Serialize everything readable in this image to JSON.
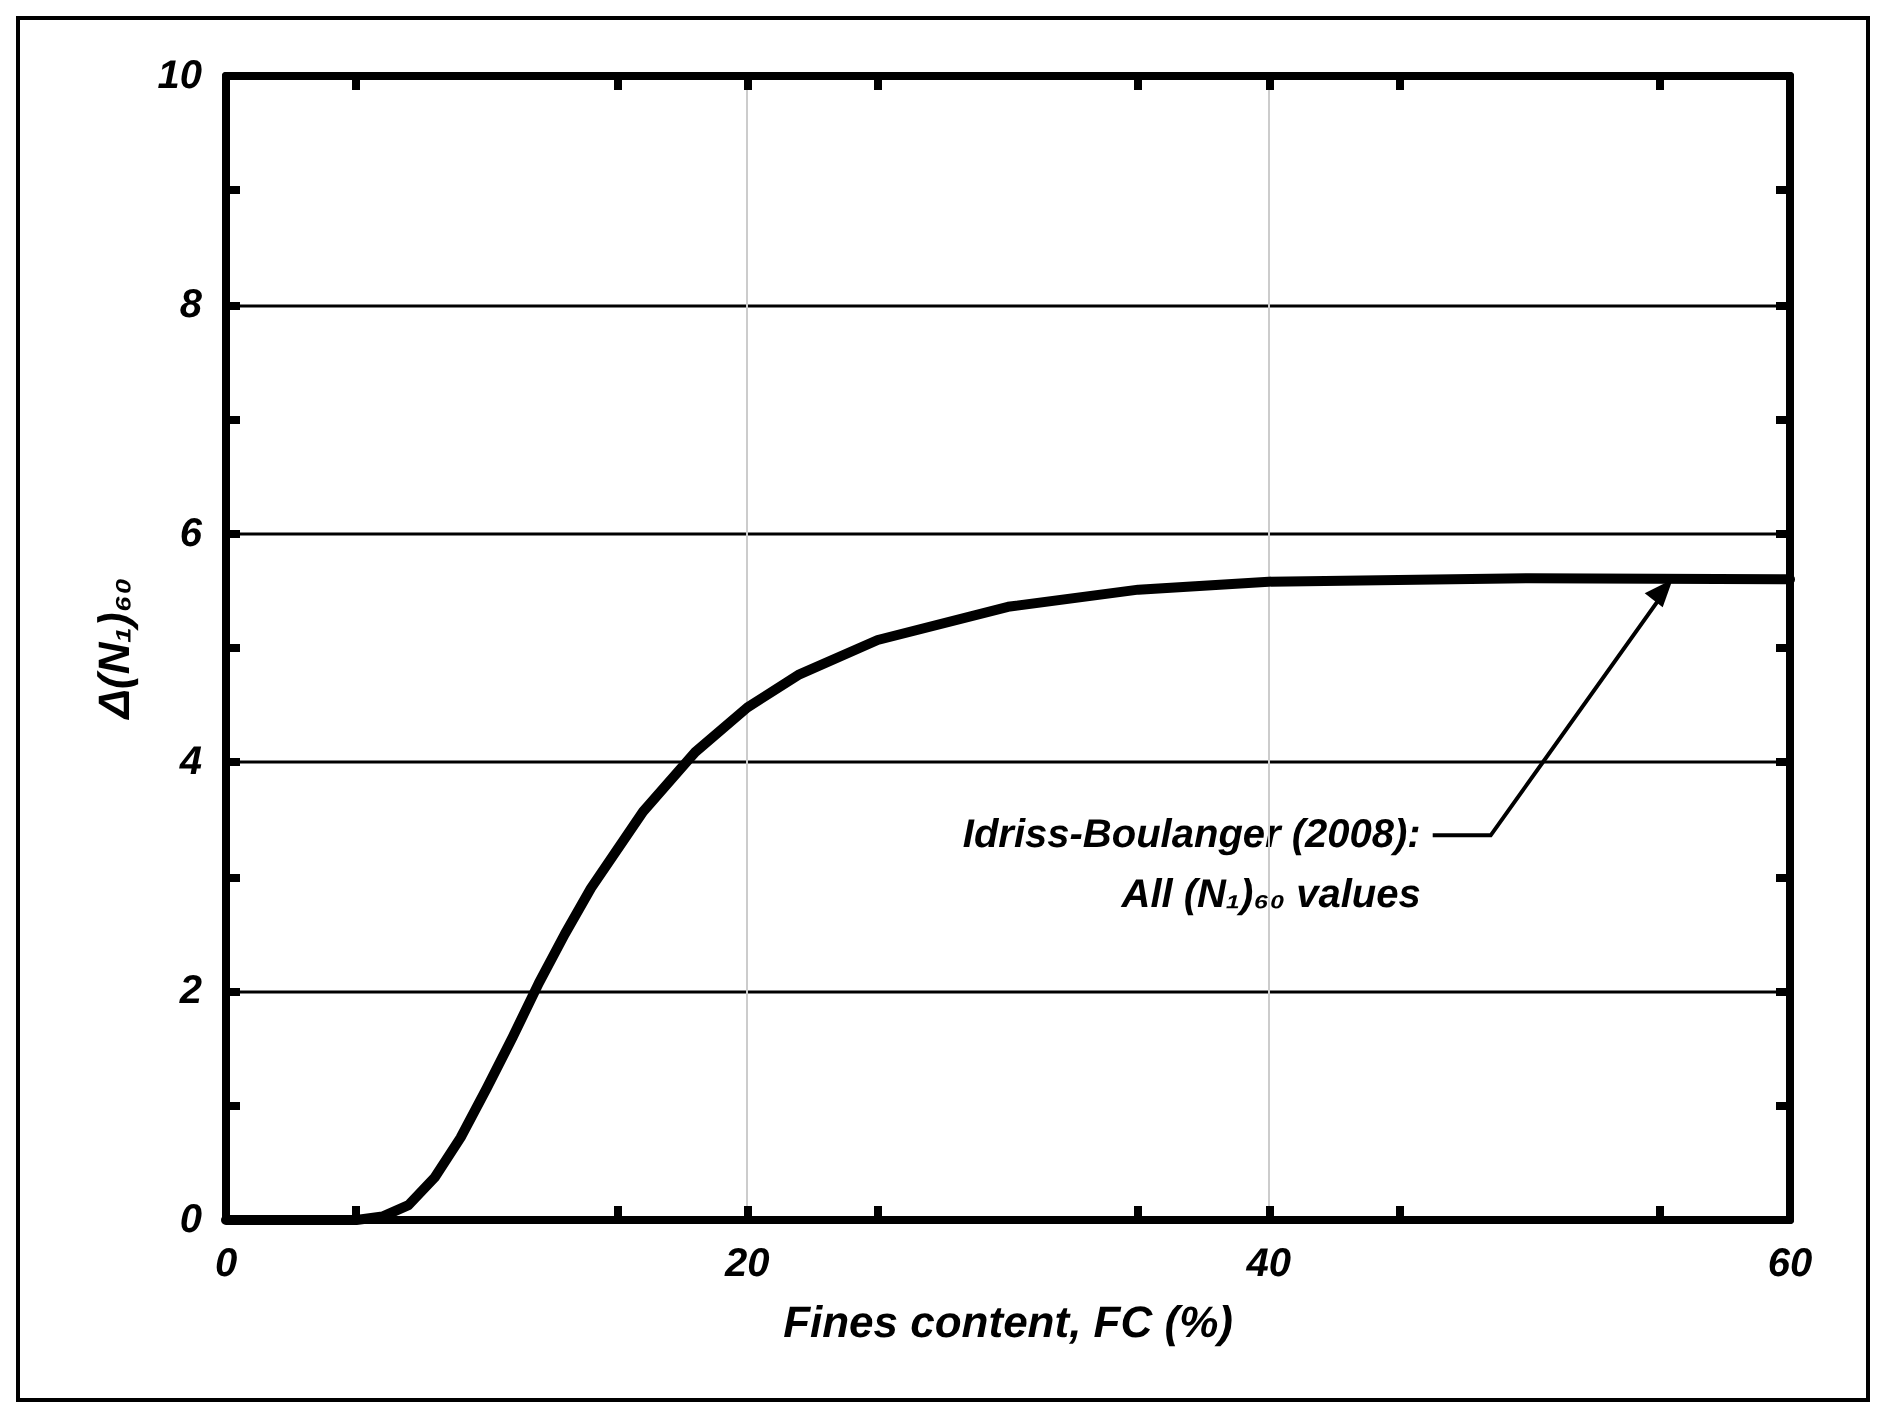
{
  "chart_data": {
    "type": "line",
    "xlabel": "Fines content, FC (%)",
    "ylabel": "Δ(N₁)₆₀",
    "x": [
      0,
      4,
      5,
      6,
      7,
      8,
      9,
      10,
      11,
      12,
      13,
      14,
      16,
      18,
      20,
      22,
      25,
      30,
      35,
      40,
      50,
      60
    ],
    "series": [
      {
        "color": "#000000",
        "values": [
          0,
          0,
          0,
          0.03,
          0.13,
          0.37,
          0.72,
          1.15,
          1.6,
          2.07,
          2.5,
          2.9,
          3.57,
          4.09,
          4.48,
          4.77,
          5.07,
          5.36,
          5.51,
          5.58,
          5.61,
          5.6
        ]
      }
    ],
    "xlim": [
      0,
      60
    ],
    "xticks": [
      0,
      20,
      40,
      60
    ],
    "ylim": [
      0,
      10
    ],
    "yticks": [
      0,
      2,
      4,
      6,
      8,
      10
    ],
    "grid": true,
    "marker": "none",
    "line_style": "solid",
    "annotations": [
      {
        "text": "Idriss-Boulanger (2008):\nAll (N₁)₆₀ values",
        "x": 55.5,
        "y": 5.6
      }
    ]
  }
}
